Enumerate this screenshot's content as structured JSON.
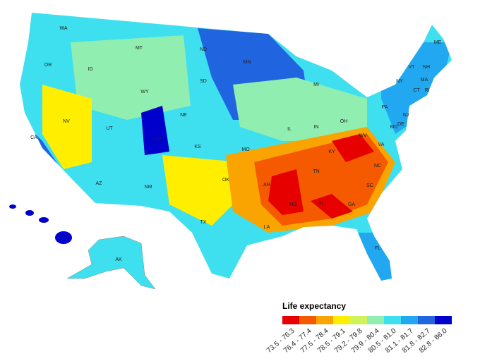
{
  "legend": {
    "title": "Life expectancy",
    "bins": [
      {
        "label": "73.5 - 76.3",
        "color": "#e60000"
      },
      {
        "label": "76.4 - 77.4",
        "color": "#f55a00"
      },
      {
        "label": "77.5 - 78.4",
        "color": "#f9a400"
      },
      {
        "label": "78.5 - 79.1",
        "color": "#ffee00"
      },
      {
        "label": "79.2 - 79.8",
        "color": "#d2f25a"
      },
      {
        "label": "79.9 - 80.4",
        "color": "#90eeb0"
      },
      {
        "label": "80.5 - 81.0",
        "color": "#3ee0f0"
      },
      {
        "label": "81.1 - 81.7",
        "color": "#22a8f0"
      },
      {
        "label": "81.8 - 82.7",
        "color": "#2064e0"
      },
      {
        "label": "82.8 - 86.0",
        "color": "#0000cc"
      }
    ]
  },
  "states": [
    "WA",
    "MT",
    "ND",
    "MN",
    "OR",
    "ID",
    "SD",
    "WY",
    "MI",
    "ME",
    "VT",
    "NH",
    "NY",
    "MA",
    "CT",
    "RI",
    "PA",
    "NJ",
    "DE",
    "MD",
    "NV",
    "UT",
    "CO",
    "NE",
    "KS",
    "MO",
    "IL",
    "IN",
    "OH",
    "WV",
    "VA",
    "KY",
    "CA",
    "NC",
    "TN",
    "AZ",
    "NM",
    "OK",
    "AR",
    "SC",
    "MS",
    "AL",
    "GA",
    "TX",
    "LA",
    "FL",
    "AK"
  ]
}
